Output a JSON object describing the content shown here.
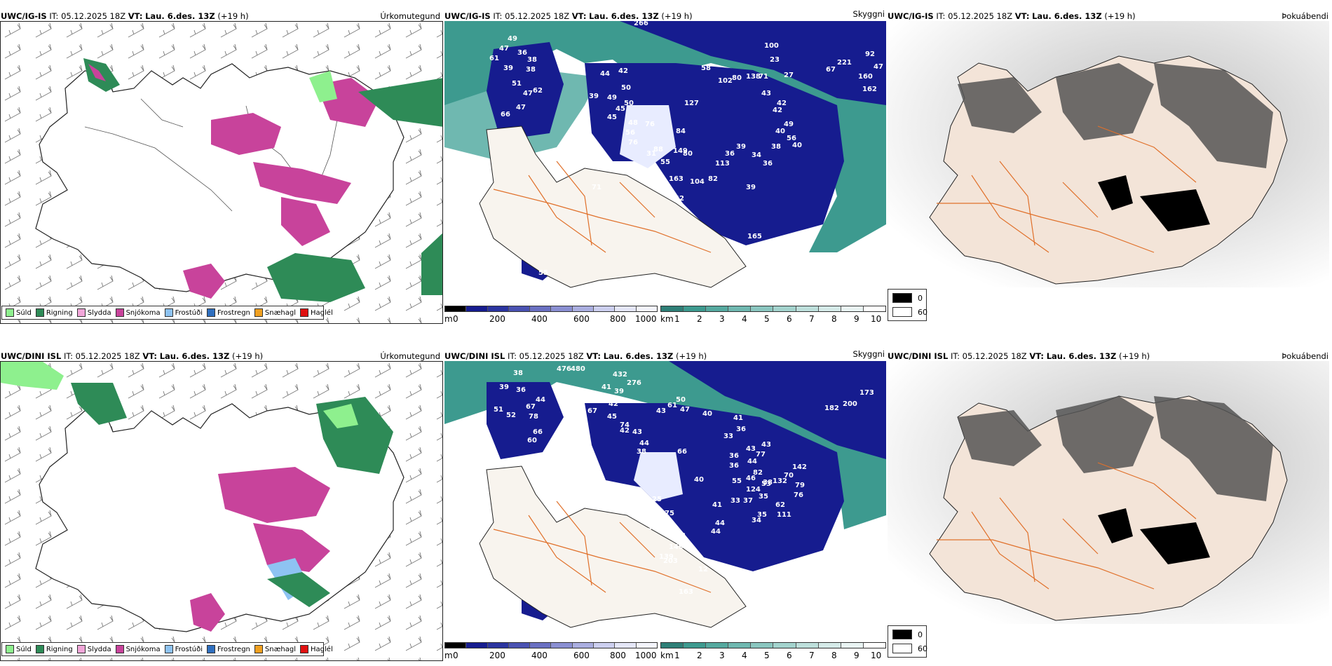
{
  "rows": [
    {
      "model": "UWC/IG-IS",
      "it_label": "IT:",
      "it_value": "05.12.2025 18Z",
      "vt_label": "VT:",
      "vt_value": "Lau. 6.des. 13Z",
      "lead": "(+19 h)",
      "titles": {
        "precip": "Úrkomutegund",
        "cloud": "Skyggni",
        "fog": "Þokuábendi"
      },
      "cloud_labels": [
        "49",
        "47",
        "36",
        "38",
        "61",
        "39",
        "38",
        "51",
        "47",
        "47",
        "66",
        "62",
        "39",
        "44",
        "42",
        "50",
        "49",
        "50",
        "45",
        "45",
        "48",
        "56",
        "76",
        "76",
        "88",
        "84",
        "127",
        "102",
        "80",
        "138",
        "71",
        "43",
        "42",
        "42",
        "49",
        "40",
        "56",
        "40",
        "38",
        "36",
        "34",
        "39",
        "39",
        "36",
        "113",
        "82",
        "104",
        "163",
        "149",
        "80",
        "42",
        "55",
        "31",
        "48",
        "59",
        "71",
        "165",
        "55",
        "58",
        "100",
        "23",
        "27",
        "67",
        "221",
        "92",
        "47",
        "160",
        "162"
      ],
      "cloud_big": [
        "266"
      ]
    },
    {
      "model": "UWC/DINI ISL",
      "it_label": "IT:",
      "it_value": "05.12.2025 18Z",
      "vt_label": "VT:",
      "vt_value": "Lau. 6.des. 13Z",
      "lead": "(+19 h)",
      "titles": {
        "precip": "Úrkomutegund",
        "cloud": "Skyggni",
        "fog": "Þokuábendi"
      },
      "cloud_labels": [
        "38",
        "39",
        "36",
        "51",
        "52",
        "67",
        "78",
        "66",
        "60",
        "44",
        "74",
        "41",
        "39",
        "42",
        "67",
        "45",
        "42",
        "43",
        "44",
        "38",
        "43",
        "61",
        "50",
        "66",
        "47",
        "40",
        "41",
        "36",
        "43",
        "44",
        "46",
        "43",
        "77",
        "82",
        "53",
        "124",
        "41",
        "55",
        "40",
        "36",
        "36",
        "33",
        "35",
        "34",
        "33",
        "37",
        "35",
        "38",
        "70",
        "79",
        "76",
        "62",
        "111",
        "44",
        "44",
        "25",
        "27",
        "75",
        "56",
        "83",
        "12",
        "203",
        "163",
        "139",
        "149",
        "132",
        "142",
        "182",
        "200",
        "173"
      ],
      "cloud_big": [
        "476",
        "480",
        "432",
        "276"
      ]
    }
  ],
  "precip_legend": [
    {
      "label": "Súld",
      "color": "#8ef08e"
    },
    {
      "label": "Rigning",
      "color": "#2e8b57"
    },
    {
      "label": "Slydda",
      "color": "#f2a6d9"
    },
    {
      "label": "Snjókoma",
      "color": "#c8439b"
    },
    {
      "label": "Frostúði",
      "color": "#8ec3f2"
    },
    {
      "label": "Frostregn",
      "color": "#2f6fbf"
    },
    {
      "label": "Snæhagl",
      "color": "#f0a020"
    },
    {
      "label": "Haglél",
      "color": "#e01010"
    }
  ],
  "cloud_base_bar": {
    "unit": "m",
    "ticks": [
      "0",
      "200",
      "400",
      "600",
      "800",
      "1000"
    ]
  },
  "visibility_bar": {
    "unit": "km",
    "ticks": [
      "1",
      "2",
      "3",
      "4",
      "5",
      "6",
      "7",
      "8",
      "9",
      "10"
    ]
  },
  "fog_legend": {
    "high": "0",
    "low": "60"
  },
  "colors": {
    "ocean_teal": "#3d9a8f",
    "cloud_navy": "#161c8f",
    "land_beige": "#f3e4d8",
    "roads": "#e0702a",
    "snow_pink": "#c8439b",
    "rain_green": "#2e8b57"
  }
}
